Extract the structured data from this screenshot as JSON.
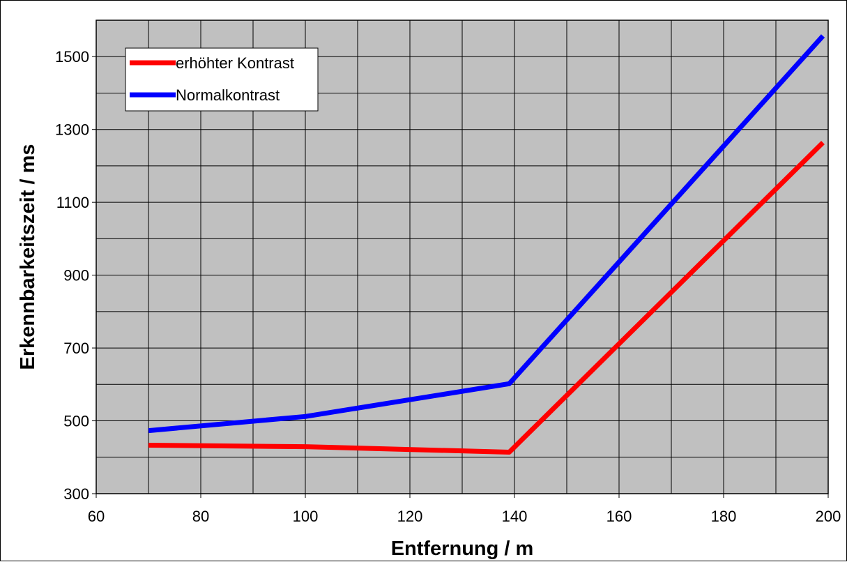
{
  "chart_data": {
    "type": "line",
    "title": "",
    "xlabel": "Entfernung / m",
    "ylabel": "Erkennbarkeitszeit / ms",
    "xlim": [
      60,
      200
    ],
    "ylim": [
      300,
      1600
    ],
    "x_ticks": [
      60,
      80,
      100,
      120,
      140,
      160,
      180,
      200
    ],
    "y_ticks": [
      300,
      500,
      700,
      900,
      1100,
      1300,
      1500
    ],
    "x_grid_step": 10,
    "y_grid_step": 100,
    "grid": true,
    "plot_background": "#c0c0c0",
    "legend_position": "top-left",
    "series": [
      {
        "name": "erhöhter Kontrast",
        "color": "#ff0000",
        "x": [
          70,
          100,
          139,
          199
        ],
        "y": [
          433,
          429,
          414,
          1264
        ]
      },
      {
        "name": "Normalkontrast",
        "color": "#0000ff",
        "x": [
          70,
          100,
          139,
          199
        ],
        "y": [
          473,
          512,
          602,
          1557
        ]
      }
    ]
  }
}
